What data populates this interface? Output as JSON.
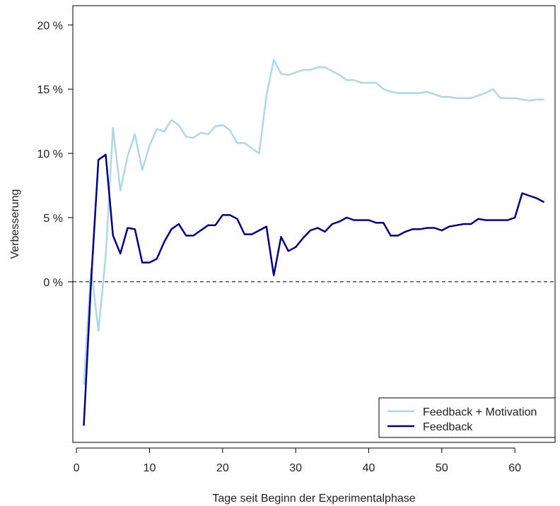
{
  "chart_data": {
    "type": "line",
    "title": "",
    "xlabel": "Tage seit Beginn der Experimentalphase",
    "ylabel": "Verbesserung",
    "xlim": [
      -0.5,
      65.5
    ],
    "ylim": [
      -12.5,
      21.5
    ],
    "x_ticks": [
      0,
      10,
      20,
      30,
      40,
      50,
      60
    ],
    "x_tick_labels": [
      "0",
      "10",
      "20",
      "30",
      "40",
      "50",
      "60"
    ],
    "y_ticks": [
      0,
      5,
      10,
      15,
      20
    ],
    "y_tick_labels": [
      "0 %",
      "5 %",
      "10 %",
      "15 %",
      "20 %"
    ],
    "reference_line": {
      "y": 0,
      "style": "dashed",
      "color": "#000000"
    },
    "grid": false,
    "legend_position": "bottom-right",
    "x": [
      1,
      2,
      3,
      4,
      5,
      6,
      7,
      8,
      9,
      10,
      11,
      12,
      13,
      14,
      15,
      16,
      17,
      18,
      19,
      20,
      21,
      22,
      23,
      24,
      25,
      26,
      27,
      28,
      29,
      30,
      31,
      32,
      33,
      34,
      35,
      36,
      37,
      38,
      39,
      40,
      41,
      42,
      43,
      44,
      45,
      46,
      47,
      48,
      49,
      50,
      51,
      52,
      53,
      54,
      55,
      56,
      57,
      58,
      59,
      60,
      61,
      62,
      63,
      64
    ],
    "series": [
      {
        "name": "Feedback + Motivation",
        "color": "#add8e6",
        "values": [
          -8,
          1,
          -3.8,
          2,
          12,
          7.1,
          9.8,
          11.5,
          8.7,
          10.6,
          11.9,
          11.7,
          12.6,
          12.2,
          11.3,
          11.2,
          11.6,
          11.5,
          12.1,
          12.2,
          11.8,
          10.8,
          10.8,
          10.4,
          10,
          14.5,
          17.3,
          16.2,
          16.1,
          16.3,
          16.5,
          16.5,
          16.7,
          16.7,
          16.4,
          16.1,
          15.7,
          15.7,
          15.5,
          15.5,
          15.5,
          15,
          14.8,
          14.7,
          14.7,
          14.7,
          14.7,
          14.8,
          14.6,
          14.4,
          14.4,
          14.3,
          14.3,
          14.3,
          14.5,
          14.7,
          15,
          14.3,
          14.3,
          14.3,
          14.2,
          14.1,
          14.2,
          14.2
        ]
      },
      {
        "name": "Feedback",
        "color": "#00008b",
        "values": [
          -11.2,
          0,
          9.5,
          9.9,
          3.6,
          2.2,
          4.2,
          4.1,
          1.5,
          1.5,
          1.8,
          3.1,
          4.1,
          4.5,
          3.6,
          3.6,
          4,
          4.4,
          4.4,
          5.2,
          5.2,
          4.9,
          3.7,
          3.7,
          4,
          4.3,
          0.5,
          3.5,
          2.4,
          2.7,
          3.4,
          4,
          4.2,
          3.9,
          4.5,
          4.7,
          5,
          4.8,
          4.8,
          4.8,
          4.6,
          4.6,
          3.6,
          3.6,
          3.9,
          4.1,
          4.1,
          4.2,
          4.2,
          4,
          4.3,
          4.4,
          4.5,
          4.5,
          4.9,
          4.8,
          4.8,
          4.8,
          4.8,
          5,
          6.9,
          6.7,
          6.5,
          6.2
        ]
      }
    ]
  }
}
